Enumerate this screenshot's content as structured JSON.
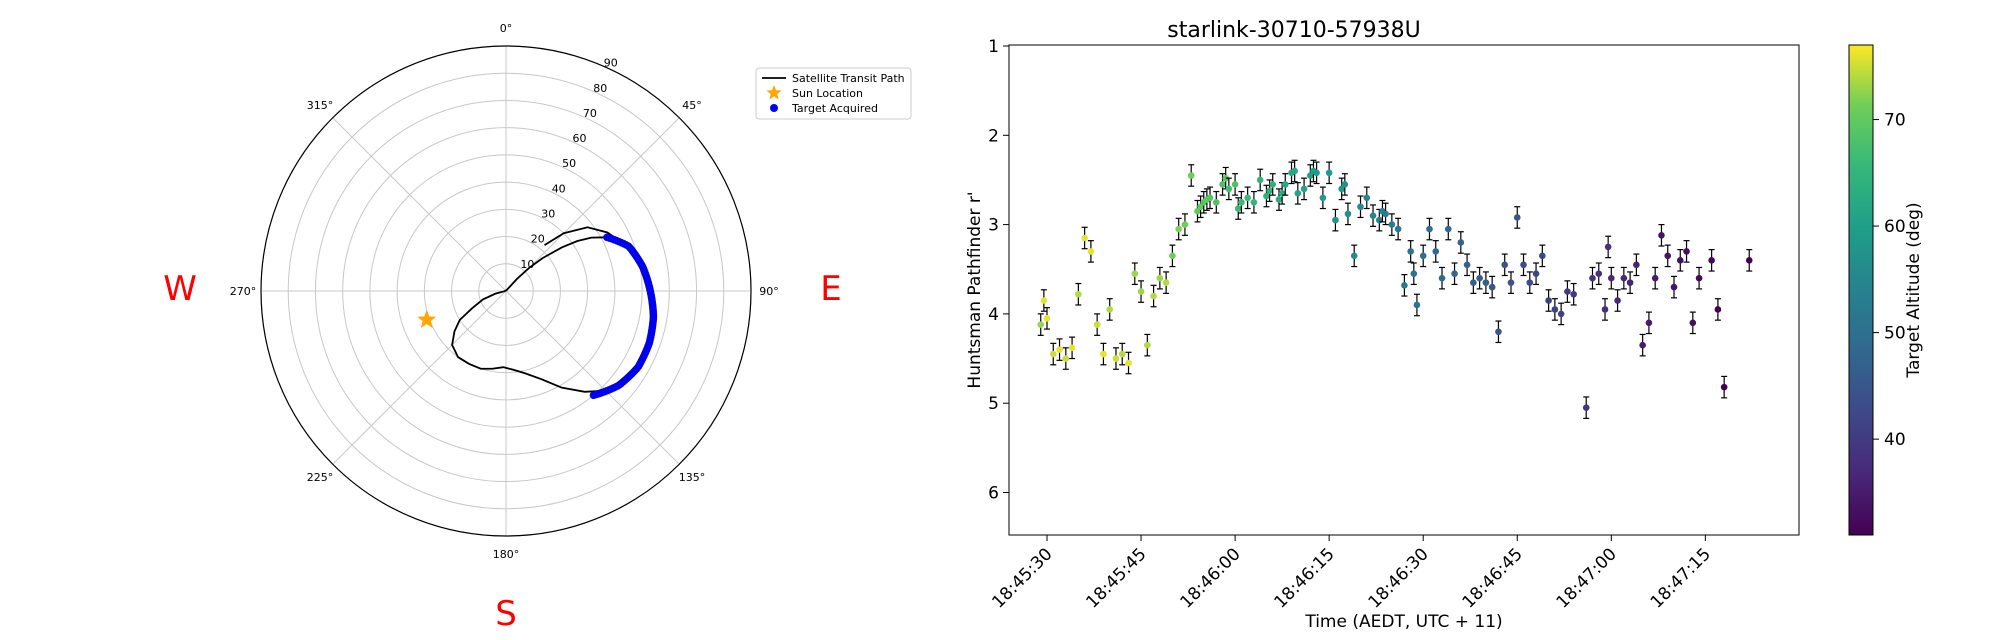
{
  "chart_data": [
    {
      "type": "polar",
      "theta_zero": "N",
      "theta_direction": "clockwise",
      "r_axis": "altitude (deg), 90 at centre",
      "r_tick_labels": [
        "10",
        "20",
        "30",
        "40",
        "50",
        "60",
        "70",
        "80",
        "90"
      ],
      "theta_tick_labels": [
        "0°",
        "45°",
        "90°",
        "135°",
        "180°",
        "225°",
        "270°",
        "315°"
      ],
      "direction_labels": [
        "W",
        "E",
        "S"
      ],
      "direction_color": "#ff0000",
      "legend": {
        "placement": "upper-right",
        "entries": [
          {
            "label": "Satellite Transit Path",
            "marker": "line",
            "color": "#000000"
          },
          {
            "label": "Sun Location",
            "marker": "star",
            "color": "#ffa500"
          },
          {
            "label": "Target Acquired",
            "marker": "dot",
            "color": "#0000ff"
          }
        ]
      },
      "sun": {
        "azimuth": 250,
        "altitude": 59
      },
      "transit_path": [
        {
          "az": 40,
          "alt": 68
        },
        {
          "az": 45,
          "alt": 60
        },
        {
          "az": 52,
          "alt": 52
        },
        {
          "az": 60,
          "alt": 47
        },
        {
          "az": 67,
          "alt": 44
        },
        {
          "az": 74,
          "alt": 41
        },
        {
          "az": 81,
          "alt": 39
        },
        {
          "az": 89,
          "alt": 37
        },
        {
          "az": 97,
          "alt": 35
        },
        {
          "az": 104,
          "alt": 34
        },
        {
          "az": 111,
          "alt": 34
        },
        {
          "az": 118,
          "alt": 34
        },
        {
          "az": 124,
          "alt": 34
        },
        {
          "az": 130,
          "alt": 36
        },
        {
          "az": 136,
          "alt": 39
        },
        {
          "az": 142,
          "alt": 43
        },
        {
          "az": 150,
          "alt": 49
        },
        {
          "az": 158,
          "alt": 55
        },
        {
          "az": 167,
          "alt": 59
        },
        {
          "az": 175,
          "alt": 61
        },
        {
          "az": 182,
          "alt": 62
        },
        {
          "az": 190,
          "alt": 61
        },
        {
          "az": 198,
          "alt": 60
        },
        {
          "az": 207,
          "alt": 60
        },
        {
          "az": 216,
          "alt": 60
        },
        {
          "az": 225,
          "alt": 62
        },
        {
          "az": 232,
          "alt": 66
        },
        {
          "az": 238,
          "alt": 70
        },
        {
          "az": 243,
          "alt": 76
        },
        {
          "az": 250,
          "alt": 81
        },
        {
          "az": 256,
          "alt": 86
        },
        {
          "az": 262,
          "alt": 89.5
        },
        {
          "az": 37,
          "alt": 89.5
        },
        {
          "az": 42,
          "alt": 84
        },
        {
          "az": 45,
          "alt": 78
        },
        {
          "az": 48,
          "alt": 72
        },
        {
          "az": 52,
          "alt": 64
        },
        {
          "az": 55,
          "alt": 58
        },
        {
          "az": 58,
          "alt": 53
        },
        {
          "az": 62,
          "alt": 48
        },
        {
          "az": 67,
          "alt": 44
        }
      ],
      "target_acquired": {
        "az_start": 62,
        "az_end": 140,
        "count": 90,
        "alt_profile": [
          {
            "az": 62,
            "alt": 48
          },
          {
            "az": 70,
            "alt": 42
          },
          {
            "az": 80,
            "alt": 39
          },
          {
            "az": 90,
            "alt": 37
          },
          {
            "az": 100,
            "alt": 35
          },
          {
            "az": 110,
            "alt": 34
          },
          {
            "az": 120,
            "alt": 34
          },
          {
            "az": 130,
            "alt": 36
          },
          {
            "az": 140,
            "alt": 40
          }
        ]
      }
    },
    {
      "type": "scatter",
      "title": "starlink-30710-57938U",
      "xlabel": "Time (AEDT, UTC + 11)",
      "ylabel": "Huntsman Pathfinder r'",
      "x_tick_labels": [
        "18:45:30",
        "18:45:45",
        "18:46:00",
        "18:46:15",
        "18:46:30",
        "18:46:45",
        "18:47:00",
        "18:47:15"
      ],
      "y_tick_labels": [
        "1",
        "2",
        "3",
        "4",
        "5",
        "6"
      ],
      "ylim": [
        6.5,
        1
      ],
      "y_inverted": true,
      "error_bar": 0.12,
      "colorbar": {
        "label": "Target Altitude (deg)",
        "tick_labels": [
          "40",
          "50",
          "60",
          "70"
        ],
        "range": [
          31,
          77
        ],
        "colormap": "viridis"
      },
      "points": [
        {
          "t": "18:45:29",
          "mag": 4.12,
          "alt": 73
        },
        {
          "t": "18:45:29.5",
          "mag": 3.85,
          "alt": 76
        },
        {
          "t": "18:45:30",
          "mag": 4.05,
          "alt": 76
        },
        {
          "t": "18:45:31",
          "mag": 4.45,
          "alt": 75
        },
        {
          "t": "18:45:32",
          "mag": 4.4,
          "alt": 76
        },
        {
          "t": "18:45:33",
          "mag": 4.5,
          "alt": 75
        },
        {
          "t": "18:45:34",
          "mag": 4.38,
          "alt": 76
        },
        {
          "t": "18:45:35",
          "mag": 3.78,
          "alt": 74
        },
        {
          "t": "18:45:36",
          "mag": 3.15,
          "alt": 76
        },
        {
          "t": "18:45:37",
          "mag": 3.3,
          "alt": 76
        },
        {
          "t": "18:45:38",
          "mag": 4.12,
          "alt": 75
        },
        {
          "t": "18:45:39",
          "mag": 4.45,
          "alt": 76
        },
        {
          "t": "18:45:40",
          "mag": 3.95,
          "alt": 74
        },
        {
          "t": "18:45:41",
          "mag": 4.5,
          "alt": 75
        },
        {
          "t": "18:45:42",
          "mag": 4.45,
          "alt": 74
        },
        {
          "t": "18:45:43",
          "mag": 4.55,
          "alt": 76
        },
        {
          "t": "18:45:44",
          "mag": 3.55,
          "alt": 73
        },
        {
          "t": "18:45:45",
          "mag": 3.75,
          "alt": 73
        },
        {
          "t": "18:45:46",
          "mag": 4.35,
          "alt": 74
        },
        {
          "t": "18:45:47",
          "mag": 3.8,
          "alt": 74
        },
        {
          "t": "18:45:48",
          "mag": 3.6,
          "alt": 73
        },
        {
          "t": "18:45:49",
          "mag": 3.65,
          "alt": 74
        },
        {
          "t": "18:45:50",
          "mag": 3.35,
          "alt": 71
        },
        {
          "t": "18:45:51",
          "mag": 3.05,
          "alt": 72
        },
        {
          "t": "18:45:52",
          "mag": 3.0,
          "alt": 71
        },
        {
          "t": "18:45:53",
          "mag": 2.45,
          "alt": 71
        },
        {
          "t": "18:45:54",
          "mag": 2.85,
          "alt": 70
        },
        {
          "t": "18:45:54.5",
          "mag": 2.8,
          "alt": 70
        },
        {
          "t": "18:45:55",
          "mag": 2.75,
          "alt": 69
        },
        {
          "t": "18:45:55.5",
          "mag": 2.72,
          "alt": 70
        },
        {
          "t": "18:45:56",
          "mag": 2.7,
          "alt": 69
        },
        {
          "t": "18:45:57",
          "mag": 2.75,
          "alt": 68
        },
        {
          "t": "18:45:58",
          "mag": 2.55,
          "alt": 68
        },
        {
          "t": "18:45:58.5",
          "mag": 2.48,
          "alt": 69
        },
        {
          "t": "18:45:59",
          "mag": 2.6,
          "alt": 67
        },
        {
          "t": "18:46:00",
          "mag": 2.55,
          "alt": 68
        },
        {
          "t": "18:46:00.5",
          "mag": 2.82,
          "alt": 66
        },
        {
          "t": "18:46:01",
          "mag": 2.75,
          "alt": 66
        },
        {
          "t": "18:46:02",
          "mag": 2.7,
          "alt": 66
        },
        {
          "t": "18:46:03",
          "mag": 2.75,
          "alt": 65
        },
        {
          "t": "18:46:04",
          "mag": 2.5,
          "alt": 65
        },
        {
          "t": "18:46:05",
          "mag": 2.68,
          "alt": 64
        },
        {
          "t": "18:46:05.5",
          "mag": 2.62,
          "alt": 64
        },
        {
          "t": "18:46:06",
          "mag": 2.55,
          "alt": 64
        },
        {
          "t": "18:46:07",
          "mag": 2.72,
          "alt": 63
        },
        {
          "t": "18:46:07.5",
          "mag": 2.65,
          "alt": 63
        },
        {
          "t": "18:46:08",
          "mag": 2.55,
          "alt": 62
        },
        {
          "t": "18:46:09",
          "mag": 2.42,
          "alt": 62
        },
        {
          "t": "18:46:09.5",
          "mag": 2.4,
          "alt": 62
        },
        {
          "t": "18:46:10",
          "mag": 2.65,
          "alt": 61
        },
        {
          "t": "18:46:11",
          "mag": 2.6,
          "alt": 61
        },
        {
          "t": "18:46:12",
          "mag": 2.45,
          "alt": 60
        },
        {
          "t": "18:46:12.5",
          "mag": 2.4,
          "alt": 60
        },
        {
          "t": "18:46:13",
          "mag": 2.42,
          "alt": 59
        },
        {
          "t": "18:46:14",
          "mag": 2.7,
          "alt": 59
        },
        {
          "t": "18:46:15",
          "mag": 2.42,
          "alt": 59
        },
        {
          "t": "18:46:16",
          "mag": 2.95,
          "alt": 58
        },
        {
          "t": "18:46:17",
          "mag": 2.6,
          "alt": 58
        },
        {
          "t": "18:46:17.5",
          "mag": 2.55,
          "alt": 57
        },
        {
          "t": "18:46:18",
          "mag": 2.88,
          "alt": 57
        },
        {
          "t": "18:46:19",
          "mag": 3.35,
          "alt": 56
        },
        {
          "t": "18:46:20",
          "mag": 2.8,
          "alt": 56
        },
        {
          "t": "18:46:21",
          "mag": 2.7,
          "alt": 55
        },
        {
          "t": "18:46:22",
          "mag": 2.9,
          "alt": 55
        },
        {
          "t": "18:46:23",
          "mag": 2.95,
          "alt": 54
        },
        {
          "t": "18:46:23.5",
          "mag": 2.85,
          "alt": 54
        },
        {
          "t": "18:46:24",
          "mag": 2.88,
          "alt": 53
        },
        {
          "t": "18:46:25",
          "mag": 3.0,
          "alt": 53
        },
        {
          "t": "18:46:26",
          "mag": 3.05,
          "alt": 52
        },
        {
          "t": "18:46:27",
          "mag": 3.68,
          "alt": 52
        },
        {
          "t": "18:46:28",
          "mag": 3.3,
          "alt": 51
        },
        {
          "t": "18:46:28.5",
          "mag": 3.55,
          "alt": 51
        },
        {
          "t": "18:46:29",
          "mag": 3.9,
          "alt": 51
        },
        {
          "t": "18:46:30",
          "mag": 3.35,
          "alt": 50
        },
        {
          "t": "18:46:31",
          "mag": 3.05,
          "alt": 50
        },
        {
          "t": "18:46:32",
          "mag": 3.3,
          "alt": 49
        },
        {
          "t": "18:46:33",
          "mag": 3.6,
          "alt": 49
        },
        {
          "t": "18:46:34",
          "mag": 3.05,
          "alt": 48
        },
        {
          "t": "18:46:35",
          "mag": 3.55,
          "alt": 48
        },
        {
          "t": "18:46:36",
          "mag": 3.2,
          "alt": 47
        },
        {
          "t": "18:46:37",
          "mag": 3.45,
          "alt": 47
        },
        {
          "t": "18:46:38",
          "mag": 3.65,
          "alt": 46
        },
        {
          "t": "18:46:39",
          "mag": 3.6,
          "alt": 46
        },
        {
          "t": "18:46:40",
          "mag": 3.65,
          "alt": 46
        },
        {
          "t": "18:46:41",
          "mag": 3.7,
          "alt": 45
        },
        {
          "t": "18:46:42",
          "mag": 4.2,
          "alt": 45
        },
        {
          "t": "18:46:43",
          "mag": 3.45,
          "alt": 44
        },
        {
          "t": "18:46:44",
          "mag": 3.65,
          "alt": 44
        },
        {
          "t": "18:46:45",
          "mag": 2.92,
          "alt": 44
        },
        {
          "t": "18:46:46",
          "mag": 3.45,
          "alt": 43
        },
        {
          "t": "18:46:47",
          "mag": 3.65,
          "alt": 43
        },
        {
          "t": "18:46:48",
          "mag": 3.55,
          "alt": 42
        },
        {
          "t": "18:46:49",
          "mag": 3.35,
          "alt": 42
        },
        {
          "t": "18:46:50",
          "mag": 3.85,
          "alt": 41
        },
        {
          "t": "18:46:51",
          "mag": 3.95,
          "alt": 41
        },
        {
          "t": "18:46:52",
          "mag": 4.0,
          "alt": 41
        },
        {
          "t": "18:46:53",
          "mag": 3.75,
          "alt": 40
        },
        {
          "t": "18:46:54",
          "mag": 3.78,
          "alt": 40
        },
        {
          "t": "18:46:56",
          "mag": 5.05,
          "alt": 39
        },
        {
          "t": "18:46:57",
          "mag": 3.6,
          "alt": 39
        },
        {
          "t": "18:46:58",
          "mag": 3.55,
          "alt": 38
        },
        {
          "t": "18:46:59",
          "mag": 3.95,
          "alt": 38
        },
        {
          "t": "18:46:59.5",
          "mag": 3.25,
          "alt": 38
        },
        {
          "t": "18:47:00",
          "mag": 3.6,
          "alt": 37
        },
        {
          "t": "18:47:01",
          "mag": 3.85,
          "alt": 37
        },
        {
          "t": "18:47:02",
          "mag": 3.6,
          "alt": 37
        },
        {
          "t": "18:47:03",
          "mag": 3.65,
          "alt": 36
        },
        {
          "t": "18:47:04",
          "mag": 3.45,
          "alt": 36
        },
        {
          "t": "18:47:05",
          "mag": 4.35,
          "alt": 35
        },
        {
          "t": "18:47:06",
          "mag": 4.1,
          "alt": 35
        },
        {
          "t": "18:47:07",
          "mag": 3.6,
          "alt": 35
        },
        {
          "t": "18:47:08",
          "mag": 3.12,
          "alt": 34
        },
        {
          "t": "18:47:09",
          "mag": 3.35,
          "alt": 34
        },
        {
          "t": "18:47:10",
          "mag": 3.7,
          "alt": 34
        },
        {
          "t": "18:47:11",
          "mag": 3.4,
          "alt": 33
        },
        {
          "t": "18:47:12",
          "mag": 3.3,
          "alt": 33
        },
        {
          "t": "18:47:13",
          "mag": 4.1,
          "alt": 33
        },
        {
          "t": "18:47:14",
          "mag": 3.6,
          "alt": 32
        },
        {
          "t": "18:47:16",
          "mag": 3.4,
          "alt": 32
        },
        {
          "t": "18:47:17",
          "mag": 3.95,
          "alt": 31
        },
        {
          "t": "18:47:18",
          "mag": 4.82,
          "alt": 31
        },
        {
          "t": "18:47:22",
          "mag": 3.4,
          "alt": 31
        }
      ]
    }
  ]
}
